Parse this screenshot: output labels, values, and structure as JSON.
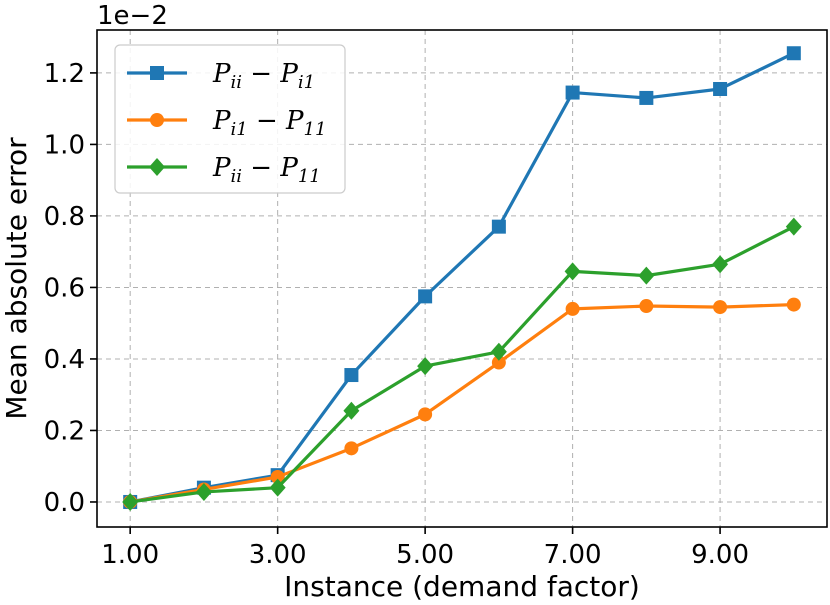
{
  "chart_data": {
    "type": "line",
    "xlabel": "Instance (demand factor)",
    "ylabel": "Mean absolute error",
    "y_multiplier_label": "1e−2",
    "x": [
      1,
      2,
      3,
      4,
      5,
      6,
      7,
      8,
      9,
      10
    ],
    "xlim": [
      0.55,
      10.45
    ],
    "ylim": [
      -0.07,
      1.32
    ],
    "xticks": [
      1,
      3,
      5,
      7,
      9
    ],
    "xtick_labels": [
      "1.00",
      "3.00",
      "5.00",
      "7.00",
      "9.00"
    ],
    "yticks": [
      0.0,
      0.2,
      0.4,
      0.6,
      0.8,
      1.0,
      1.2
    ],
    "ytick_labels": [
      "0.0",
      "0.2",
      "0.4",
      "0.6",
      "0.8",
      "1.0",
      "1.2"
    ],
    "grid": true,
    "legend_position": "upper-left",
    "series": [
      {
        "name": "P_ii − P_i1",
        "name_parts": {
          "a": "P",
          "a_sub": "ii",
          "op": "−",
          "b": "P",
          "b_sub": "i1"
        },
        "color": "#1f77b4",
        "marker": "square",
        "values": [
          0.0,
          0.04,
          0.075,
          0.355,
          0.575,
          0.77,
          1.145,
          1.13,
          1.155,
          1.255
        ]
      },
      {
        "name": "P_i1 − P_11",
        "name_parts": {
          "a": "P",
          "a_sub": "i1",
          "op": "−",
          "b": "P",
          "b_sub": "11"
        },
        "color": "#ff7f0e",
        "marker": "circle",
        "values": [
          0.0,
          0.035,
          0.07,
          0.15,
          0.245,
          0.39,
          0.54,
          0.548,
          0.545,
          0.552
        ]
      },
      {
        "name": "P_ii − P_11",
        "name_parts": {
          "a": "P",
          "a_sub": "ii",
          "op": "−",
          "b": "P",
          "b_sub": "11"
        },
        "color": "#2ca02c",
        "marker": "diamond",
        "values": [
          0.0,
          0.028,
          0.04,
          0.255,
          0.38,
          0.42,
          0.645,
          0.633,
          0.665,
          0.77
        ]
      }
    ]
  }
}
